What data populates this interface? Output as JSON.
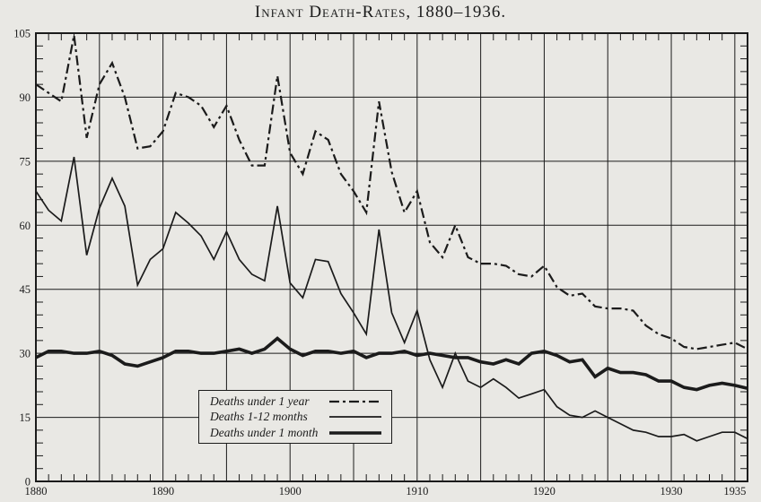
{
  "page": {
    "title": "Infant Death-Rates, 1880–1936.",
    "paper_color": "#e9e8e4",
    "ink_color": "#1b1b1b"
  },
  "legend": {
    "items": [
      {
        "label": "Deaths under 1 year",
        "style": "dash-dot"
      },
      {
        "label": "Deaths 1-12 months",
        "style": "solid-thin"
      },
      {
        "label": "Deaths under 1 month",
        "style": "solid-thick"
      }
    ]
  },
  "chart_data": {
    "type": "line",
    "title": "Infant Death-Rates, 1880–1936.",
    "xlabel": "",
    "ylabel": "",
    "xlim": [
      1880,
      1936
    ],
    "ylim": [
      0,
      105
    ],
    "grid": {
      "x_major_interval_years": 5,
      "y_major_interval": 15,
      "x_minor_interval_years": 1,
      "y_minor_interval": 3,
      "grid_on": true
    },
    "x_tick_labels": [
      {
        "value": 1880,
        "label": "1880"
      },
      {
        "value": 1890,
        "label": "1890"
      },
      {
        "value": 1900,
        "label": "1900"
      },
      {
        "value": 1910,
        "label": "1910"
      },
      {
        "value": 1920,
        "label": "1920"
      },
      {
        "value": 1930,
        "label": "1930"
      },
      {
        "value": 1935,
        "label": "1935"
      }
    ],
    "y_tick_labels": [
      0,
      15,
      30,
      45,
      60,
      75,
      90,
      105
    ],
    "x": [
      1880,
      1881,
      1882,
      1883,
      1884,
      1885,
      1886,
      1887,
      1888,
      1889,
      1890,
      1891,
      1892,
      1893,
      1894,
      1895,
      1896,
      1897,
      1898,
      1899,
      1900,
      1901,
      1902,
      1903,
      1904,
      1905,
      1906,
      1907,
      1908,
      1909,
      1910,
      1911,
      1912,
      1913,
      1914,
      1915,
      1916,
      1917,
      1918,
      1919,
      1920,
      1921,
      1922,
      1923,
      1924,
      1925,
      1926,
      1927,
      1928,
      1929,
      1930,
      1931,
      1932,
      1933,
      1934,
      1935,
      1936
    ],
    "series": [
      {
        "name": "Deaths under 1 year",
        "line": "dash-dot",
        "values": [
          93,
          91,
          89,
          104.5,
          80.5,
          93,
          98,
          90,
          78,
          78.5,
          82,
          91,
          90,
          88,
          83,
          88,
          80,
          74,
          74,
          95,
          77,
          72,
          82,
          80,
          72,
          68,
          63,
          89,
          72.5,
          63,
          68,
          56,
          52.5,
          60,
          52.5,
          51,
          51,
          50.5,
          48.5,
          48,
          50.5,
          45.5,
          43.5,
          44,
          41,
          40.5,
          40.5,
          40,
          36.5,
          34.5,
          33.5,
          31.5,
          31,
          31.5,
          32,
          32.5,
          31
        ]
      },
      {
        "name": "Deaths 1-12 months",
        "line": "solid-thin",
        "values": [
          68,
          63.5,
          61,
          76,
          53,
          64,
          71,
          64.5,
          46,
          52,
          54.5,
          63,
          60.5,
          57.5,
          52,
          58.5,
          52,
          48.5,
          47,
          64.5,
          46.5,
          43,
          52,
          51.5,
          44,
          39.5,
          34.5,
          59,
          39.5,
          32.5,
          40,
          28.5,
          22,
          30,
          23.5,
          22,
          24,
          22,
          19.5,
          20.5,
          21.5,
          17.5,
          15.5,
          15,
          16.5,
          15,
          13.5,
          12,
          11.5,
          10.5,
          10.5,
          11,
          9.5,
          10.5,
          11.5,
          11.5,
          10
        ]
      },
      {
        "name": "Deaths under 1 month",
        "line": "solid-thick",
        "values": [
          29,
          30.5,
          30.5,
          30,
          30,
          30.5,
          29.5,
          27.5,
          27,
          28,
          29,
          30.5,
          30.5,
          30,
          30,
          30.5,
          31,
          30,
          31,
          33.5,
          31,
          29.5,
          30.5,
          30.5,
          30,
          30.5,
          29,
          30,
          30,
          30.5,
          29.5,
          30,
          29.5,
          29,
          29,
          28,
          27.5,
          28.5,
          27.5,
          30,
          30.5,
          29.5,
          28,
          28.5,
          24.5,
          26.5,
          25.5,
          25.5,
          25,
          23.5,
          23.5,
          22,
          21.5,
          22.5,
          23,
          22.5,
          21.8
        ]
      }
    ]
  }
}
